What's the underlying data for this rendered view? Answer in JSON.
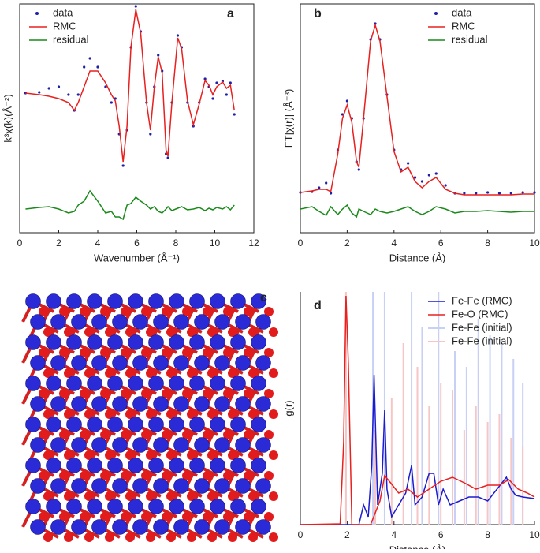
{
  "chart_data": [
    {
      "type": "line",
      "panel": "a",
      "xlabel": "Wavenumber (Å⁻¹)",
      "ylabel": "k³χ(k)(Å⁻²)",
      "legend": "upper left",
      "xlim": [
        0,
        12
      ],
      "xticks": [
        0,
        2,
        4,
        6,
        8,
        10,
        12
      ],
      "ylim": [
        5,
        295
      ],
      "x": [
        0.3,
        1,
        1.5,
        2,
        2.5,
        2.8,
        3,
        3.3,
        3.6,
        4,
        4.4,
        4.7,
        4.9,
        5.1,
        5.3,
        5.5,
        5.7,
        5.95,
        6.2,
        6.5,
        6.7,
        6.9,
        7.1,
        7.3,
        7.5,
        7.6,
        7.8,
        8.1,
        8.3,
        8.6,
        8.9,
        9.2,
        9.5,
        9.7,
        9.9,
        10.1,
        10.4,
        10.6,
        10.8,
        11
      ],
      "series": [
        {
          "name": "data",
          "style": "dots",
          "color": "#1f1fa8",
          "values": [
            182,
            183,
            188,
            190,
            180,
            160,
            180,
            215,
            226,
            215,
            190,
            170,
            175,
            130,
            90,
            135,
            240,
            292,
            260,
            170,
            130,
            190,
            230,
            210,
            105,
            100,
            170,
            255,
            240,
            170,
            140,
            170,
            200,
            190,
            175,
            195,
            197,
            180,
            195,
            155
          ]
        },
        {
          "name": "RMC",
          "style": "line",
          "color": "#e8201f",
          "values": [
            182,
            180,
            178,
            175,
            170,
            160,
            170,
            190,
            210,
            210,
            195,
            180,
            172,
            140,
            95,
            140,
            240,
            288,
            258,
            170,
            135,
            190,
            228,
            208,
            110,
            102,
            170,
            252,
            238,
            172,
            142,
            168,
            198,
            192,
            180,
            190,
            196,
            188,
            192,
            160
          ]
        },
        {
          "name": "residual",
          "style": "line",
          "color": "#1a8a1a",
          "values": [
            35,
            37,
            38,
            35,
            30,
            32,
            40,
            45,
            58,
            45,
            30,
            32,
            25,
            25,
            22,
            40,
            42,
            50,
            45,
            40,
            35,
            38,
            32,
            30,
            35,
            38,
            33,
            36,
            38,
            34,
            35,
            37,
            33,
            36,
            34,
            37,
            35,
            38,
            34,
            40
          ]
        }
      ]
    },
    {
      "type": "line",
      "panel": "b",
      "xlabel": "Distance (Å)",
      "ylabel": "FT|χ(r)| (Å⁻³)",
      "legend": "upper right",
      "xlim": [
        0,
        10
      ],
      "xticks": [
        0,
        2,
        4,
        6,
        8,
        10
      ],
      "ylim": [
        5,
        295
      ],
      "x": [
        0,
        0.5,
        0.8,
        1.1,
        1.3,
        1.6,
        1.8,
        2,
        2.2,
        2.4,
        2.5,
        2.7,
        3,
        3.2,
        3.4,
        3.7,
        4,
        4.3,
        4.6,
        4.9,
        5.2,
        5.5,
        5.8,
        6.2,
        6.6,
        7,
        7.5,
        8,
        8.5,
        9,
        9.5,
        10
      ],
      "series": [
        {
          "name": "data",
          "style": "dots",
          "color": "#1f1fa8",
          "values": [
            56,
            57,
            62,
            68,
            55,
            110,
            155,
            172,
            150,
            95,
            85,
            150,
            250,
            270,
            250,
            180,
            110,
            85,
            93,
            75,
            70,
            78,
            80,
            65,
            55,
            55,
            55,
            56,
            55,
            55,
            56,
            56
          ]
        },
        {
          "name": "RMC",
          "style": "line",
          "color": "#e8201f",
          "values": [
            56,
            58,
            60,
            60,
            57,
            105,
            150,
            167,
            145,
            95,
            88,
            150,
            248,
            268,
            248,
            178,
            108,
            82,
            88,
            70,
            62,
            70,
            75,
            60,
            55,
            53,
            53,
            53,
            53,
            53,
            54,
            54
          ]
        },
        {
          "name": "residual",
          "style": "line",
          "color": "#1a8a1a",
          "values": [
            35,
            38,
            32,
            27,
            38,
            28,
            35,
            40,
            30,
            25,
            35,
            32,
            28,
            35,
            32,
            30,
            32,
            35,
            38,
            32,
            28,
            32,
            38,
            35,
            30,
            32,
            32,
            33,
            32,
            31,
            32,
            32
          ]
        }
      ]
    },
    {
      "type": "line",
      "panel": "d",
      "xlabel": "Distance (Å)",
      "ylabel": "g(r)",
      "legend": "upper right",
      "xlim": [
        0,
        10
      ],
      "xticks": [
        0,
        2,
        4,
        6,
        8,
        10
      ],
      "ylim": [
        0,
        295
      ],
      "series": [
        {
          "name": "Fe-Fe (RMC)",
          "style": "line",
          "color": "#1c1ccf",
          "x": [
            0,
            2.5,
            2.7,
            2.9,
            3.05,
            3.15,
            3.3,
            3.5,
            3.6,
            3.7,
            3.9,
            4.2,
            4.5,
            4.75,
            4.9,
            5.2,
            5.5,
            5.7,
            5.9,
            6.1,
            6.4,
            6.8,
            7.2,
            7.6,
            8,
            8.4,
            8.8,
            9,
            9.2,
            9.5,
            10
          ],
          "values": [
            0,
            0,
            25,
            10,
            75,
            190,
            25,
            65,
            145,
            45,
            10,
            25,
            40,
            75,
            25,
            35,
            65,
            65,
            25,
            45,
            25,
            30,
            35,
            35,
            30,
            45,
            60,
            45,
            37,
            35,
            33
          ]
        },
        {
          "name": "Fe-O (RMC)",
          "style": "line",
          "color": "#e8201f",
          "x": [
            0,
            1.7,
            1.85,
            1.95,
            2.05,
            2.2,
            2.4,
            3,
            3.4,
            3.6,
            3.8,
            4.2,
            4.6,
            5,
            5.5,
            6,
            6.5,
            7,
            7.5,
            8,
            8.5,
            8.9,
            9.3,
            9.7,
            10
          ],
          "values": [
            0,
            1,
            105,
            290,
            205,
            0,
            0,
            0,
            30,
            62,
            55,
            40,
            45,
            35,
            45,
            55,
            60,
            53,
            45,
            50,
            50,
            57,
            45,
            40,
            35
          ]
        },
        {
          "name": "Fe-Fe (initial)",
          "style": "spikes",
          "color": "#c8d0f5",
          "x": [
            3.1,
            3.6,
            4.75,
            5.2,
            5.9,
            6.6,
            7.1,
            7.6,
            8.1,
            8.6,
            9.1,
            9.5
          ],
          "values": [
            295,
            295,
            295,
            250,
            295,
            220,
            200,
            260,
            240,
            230,
            210,
            180
          ]
        },
        {
          "name": "Fe-Fe (initial)",
          "style": "spikes",
          "color": "#f6c6c6",
          "x": [
            1.95,
            3.2,
            3.9,
            4.4,
            5.0,
            5.5,
            6.0,
            6.5,
            7.0,
            7.5,
            8.0,
            8.5,
            9.0,
            9.5
          ],
          "values": [
            295,
            120,
            160,
            230,
            200,
            150,
            180,
            170,
            120,
            150,
            130,
            140,
            110,
            100
          ]
        }
      ]
    }
  ],
  "panel_c": {
    "label": "c"
  }
}
